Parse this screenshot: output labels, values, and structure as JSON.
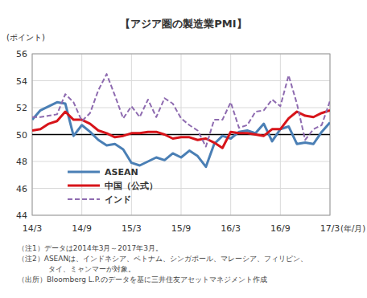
{
  "chart_data": {
    "type": "line",
    "title": "【アジア圏の製造業PMI】",
    "y_label": "(ポイント)",
    "x_label": "(年/月)",
    "categories": [
      "14/3",
      null,
      null,
      null,
      null,
      null,
      "14/9",
      null,
      null,
      null,
      null,
      null,
      "15/3",
      null,
      null,
      null,
      null,
      null,
      "15/9",
      null,
      null,
      null,
      null,
      null,
      "16/3",
      null,
      null,
      null,
      null,
      null,
      "16/9",
      null,
      null,
      null,
      null,
      null,
      "17/3"
    ],
    "ylim": [
      44,
      56
    ],
    "yticks": [
      44,
      46,
      48,
      50,
      52,
      54,
      56
    ],
    "reference_line": 50,
    "grid": true,
    "legend": "bottom-left",
    "series": [
      {
        "name": "ASEAN",
        "color": "#4a7fb5",
        "line_style": "solid",
        "values": [
          51.1,
          51.8,
          52.1,
          52.4,
          52.3,
          49.9,
          50.7,
          50.2,
          49.6,
          49.2,
          49.3,
          48.9,
          47.9,
          47.7,
          48.0,
          48.3,
          48.1,
          48.6,
          48.3,
          48.8,
          48.4,
          47.6,
          49.3,
          49.9,
          49.7,
          50.2,
          50.3,
          50.1,
          50.8,
          49.5,
          50.4,
          50.6,
          49.3,
          49.4,
          49.3,
          50.2,
          50.9
        ]
      },
      {
        "name": "中国（公式）",
        "color": "#d7141a",
        "line_style": "solid",
        "values": [
          50.3,
          50.4,
          50.8,
          51.0,
          51.7,
          51.1,
          51.1,
          50.8,
          50.3,
          50.1,
          49.8,
          49.9,
          50.1,
          50.1,
          50.2,
          50.2,
          50.0,
          49.7,
          49.8,
          49.8,
          49.6,
          49.7,
          49.4,
          49.0,
          50.2,
          50.1,
          50.1,
          50.0,
          49.9,
          50.4,
          50.4,
          51.2,
          51.7,
          51.4,
          51.3,
          51.6,
          51.8
        ]
      },
      {
        "name": "インド",
        "color": "#8e6bb0",
        "line_style": "dashed",
        "values": [
          51.3,
          51.3,
          51.4,
          51.5,
          53.0,
          52.4,
          51.0,
          51.6,
          53.3,
          54.5,
          52.9,
          51.2,
          52.1,
          51.3,
          52.6,
          51.3,
          52.7,
          52.3,
          51.2,
          50.7,
          50.3,
          49.1,
          51.1,
          51.1,
          52.4,
          50.5,
          50.7,
          51.7,
          51.8,
          52.6,
          52.1,
          54.4,
          52.3,
          49.6,
          50.4,
          50.7,
          52.5
        ]
      }
    ],
    "notes": [
      "（注1）データは2014年3月～2017年3月。",
      "（注2）ASEANは、インドネシア、ベトナム、シンガポール、マレーシア、フィリピン、",
      "タイ、ミャンマーが対象。",
      "（出所）Bloomberg L.P.のデータを基に三井住友アセットマネジメント作成"
    ]
  }
}
